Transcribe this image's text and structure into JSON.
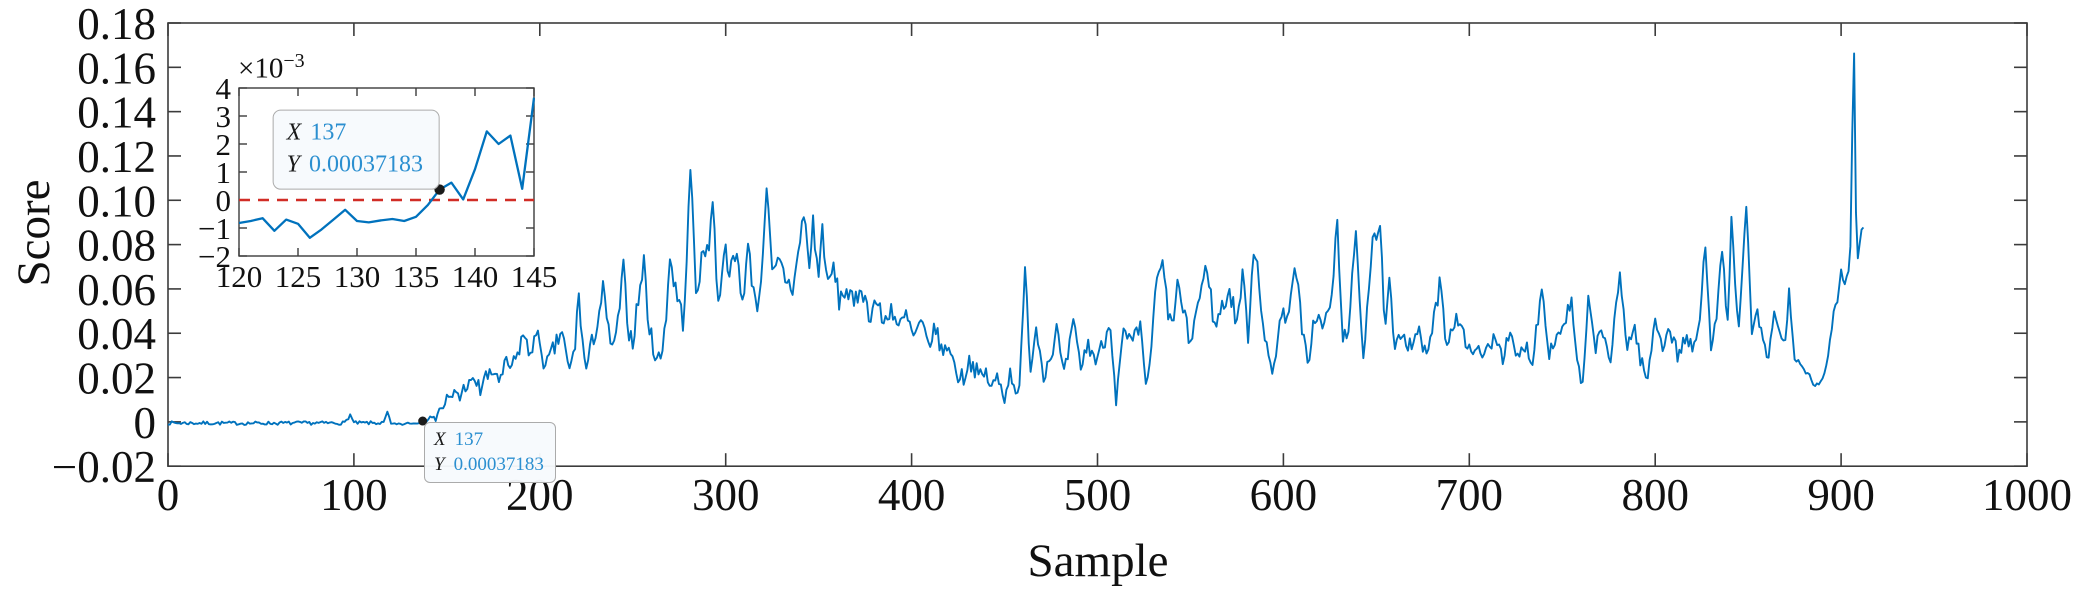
{
  "figure": {
    "background": "#ffffff"
  },
  "chart_data": {
    "type": "line",
    "title": "",
    "xlabel": "Sample",
    "ylabel": "Score",
    "grid": false,
    "legend": null,
    "xlim": [
      0,
      1000
    ],
    "ylim": [
      -0.02,
      0.18
    ],
    "xtick_values": [
      0,
      100,
      200,
      300,
      400,
      500,
      600,
      700,
      800,
      900,
      1000
    ],
    "xtick_labels": [
      "0",
      "100",
      "200",
      "300",
      "400",
      "500",
      "600",
      "700",
      "800",
      "900",
      "1000"
    ],
    "ytick_values": [
      -0.02,
      0,
      0.02,
      0.04,
      0.06,
      0.08,
      0.1,
      0.12,
      0.14,
      0.16,
      0.18
    ],
    "ytick_labels": [
      "−0.02",
      "0",
      "0.02",
      "0.04",
      "0.06",
      "0.08",
      "0.10",
      "0.12",
      "0.14",
      "0.16",
      "0.18"
    ],
    "colors": {
      "line": "#0072BD",
      "threshold": "#d12d26",
      "axis": "#3c3c3c",
      "tick_label": "#111111",
      "datatip_value": "#2b8fd0",
      "marker": "#1b1b1b"
    },
    "datatip": {
      "x_label": "X",
      "x_value": "137",
      "y_label": "Y",
      "y_value": "0.00037183"
    },
    "marker_point": {
      "x": 137,
      "y": 0.00037183
    },
    "main_series": {
      "x_start": 0,
      "x_end": 912,
      "seed": 7,
      "baseline_keypoints": [
        [
          0,
          -0.0005
        ],
        [
          40,
          -0.0006
        ],
        [
          95,
          -0.0005
        ],
        [
          98,
          0.0032
        ],
        [
          100,
          -0.0005
        ],
        [
          116,
          -0.0005
        ],
        [
          118,
          0.0045
        ],
        [
          120,
          -0.0008
        ],
        [
          128,
          -0.0006
        ],
        [
          136,
          -0.0002
        ],
        [
          137,
          0.00037183
        ],
        [
          139,
          0.002
        ],
        [
          141,
          0.0018
        ],
        [
          143,
          0.005
        ],
        [
          145,
          0.007
        ],
        [
          147,
          0.005
        ],
        [
          150,
          0.0105
        ],
        [
          152,
          0.0095
        ],
        [
          155,
          0.014
        ],
        [
          157,
          0.011
        ],
        [
          160,
          0.0167
        ],
        [
          163,
          0.0165
        ],
        [
          165,
          0.019
        ],
        [
          168,
          0.014
        ],
        [
          170,
          0.0203
        ],
        [
          173,
          0.02
        ],
        [
          176,
          0.023
        ],
        [
          179,
          0.018
        ],
        [
          182,
          0.0265
        ],
        [
          185,
          0.024
        ],
        [
          188,
          0.03
        ],
        [
          191,
          0.04
        ],
        [
          194,
          0.031
        ],
        [
          197,
          0.037
        ],
        [
          200,
          0.037
        ],
        [
          203,
          0.0235
        ],
        [
          206,
          0.03
        ],
        [
          209,
          0.035
        ],
        [
          212,
          0.0415
        ],
        [
          214,
          0.03
        ],
        [
          216,
          0.0221
        ],
        [
          219,
          0.035
        ],
        [
          221,
          0.0582
        ],
        [
          223,
          0.035
        ],
        [
          225,
          0.0235
        ],
        [
          228,
          0.035
        ],
        [
          231,
          0.045
        ],
        [
          234,
          0.0596
        ],
        [
          237,
          0.04
        ],
        [
          240,
          0.0325
        ],
        [
          242,
          0.045
        ],
        [
          245,
          0.0686
        ],
        [
          248,
          0.04
        ],
        [
          250,
          0.037
        ],
        [
          253,
          0.055
        ],
        [
          256,
          0.0723
        ],
        [
          259,
          0.04
        ],
        [
          262,
          0.032
        ],
        [
          265,
          0.0266
        ],
        [
          268,
          0.05
        ],
        [
          270,
          0.074
        ],
        [
          273,
          0.06
        ],
        [
          277,
          0.046
        ],
        [
          279,
          0.07
        ],
        [
          281,
          0.116
        ],
        [
          284,
          0.06
        ],
        [
          288,
          0.075
        ],
        [
          291,
          0.082
        ],
        [
          293,
          0.1
        ],
        [
          296,
          0.052
        ],
        [
          299,
          0.0785
        ],
        [
          303,
          0.068
        ],
        [
          306,
          0.075
        ],
        [
          309,
          0.055
        ],
        [
          312,
          0.078
        ],
        [
          315,
          0.06
        ],
        [
          318,
          0.052
        ],
        [
          322,
          0.107
        ],
        [
          325,
          0.065
        ],
        [
          329,
          0.072
        ],
        [
          332,
          0.065
        ],
        [
          336,
          0.06
        ],
        [
          339,
          0.075
        ],
        [
          342,
          0.095
        ],
        [
          345,
          0.07
        ],
        [
          347,
          0.09
        ],
        [
          350,
          0.065
        ],
        [
          352,
          0.088
        ],
        [
          355,
          0.06
        ],
        [
          358,
          0.07
        ],
        [
          361,
          0.055
        ],
        [
          365,
          0.06
        ],
        [
          369,
          0.052
        ],
        [
          373,
          0.062
        ],
        [
          377,
          0.048
        ],
        [
          381,
          0.055
        ],
        [
          385,
          0.044
        ],
        [
          389,
          0.052
        ],
        [
          393,
          0.042
        ],
        [
          397,
          0.048
        ],
        [
          401,
          0.038
        ],
        [
          405,
          0.044
        ],
        [
          409,
          0.035
        ],
        [
          413,
          0.042
        ],
        [
          417,
          0.03
        ],
        [
          420,
          0.036
        ],
        [
          422,
          0.028
        ],
        [
          425,
          0.021
        ],
        [
          428,
          0.02
        ],
        [
          431,
          0.028
        ],
        [
          434,
          0.024
        ],
        [
          437,
          0.02
        ],
        [
          440,
          0.022
        ],
        [
          443,
          0.015
        ],
        [
          446,
          0.02
        ],
        [
          450,
          0.012
        ],
        [
          453,
          0.022
        ],
        [
          456,
          0.016
        ],
        [
          458,
          0.013
        ],
        [
          461,
          0.068
        ],
        [
          464,
          0.025
        ],
        [
          467,
          0.043
        ],
        [
          471,
          0.022
        ],
        [
          475,
          0.03
        ],
        [
          478,
          0.042
        ],
        [
          482,
          0.02
        ],
        [
          487,
          0.044
        ],
        [
          491,
          0.025
        ],
        [
          495,
          0.035
        ],
        [
          499,
          0.028
        ],
        [
          503,
          0.035
        ],
        [
          507,
          0.045
        ],
        [
          510,
          0.01
        ],
        [
          514,
          0.04
        ],
        [
          518,
          0.035
        ],
        [
          523,
          0.042
        ],
        [
          526,
          0.018
        ],
        [
          529,
          0.03
        ],
        [
          531,
          0.06
        ],
        [
          535,
          0.071
        ],
        [
          538,
          0.05
        ],
        [
          540,
          0.042
        ],
        [
          543,
          0.062
        ],
        [
          546,
          0.05
        ],
        [
          550,
          0.035
        ],
        [
          553,
          0.05
        ],
        [
          556,
          0.06
        ],
        [
          559,
          0.071
        ],
        [
          563,
          0.042
        ],
        [
          566,
          0.05
        ],
        [
          571,
          0.059
        ],
        [
          575,
          0.045
        ],
        [
          578,
          0.066
        ],
        [
          581,
          0.04
        ],
        [
          584,
          0.078
        ],
        [
          586,
          0.073
        ],
        [
          590,
          0.035
        ],
        [
          594,
          0.022
        ],
        [
          598,
          0.045
        ],
        [
          602,
          0.05
        ],
        [
          607,
          0.069
        ],
        [
          610,
          0.04
        ],
        [
          613,
          0.027
        ],
        [
          617,
          0.048
        ],
        [
          621,
          0.043
        ],
        [
          625,
          0.05
        ],
        [
          629,
          0.088
        ],
        [
          632,
          0.035
        ],
        [
          635,
          0.045
        ],
        [
          639,
          0.0815
        ],
        [
          643,
          0.03
        ],
        [
          648,
          0.085
        ],
        [
          652,
          0.084
        ],
        [
          655,
          0.04
        ],
        [
          657,
          0.063
        ],
        [
          660,
          0.03
        ],
        [
          664,
          0.042
        ],
        [
          668,
          0.035
        ],
        [
          672,
          0.042
        ],
        [
          676,
          0.03
        ],
        [
          680,
          0.04
        ],
        [
          684,
          0.062
        ],
        [
          688,
          0.035
        ],
        [
          691,
          0.045
        ],
        [
          695,
          0.047
        ],
        [
          699,
          0.03
        ],
        [
          703,
          0.036
        ],
        [
          706,
          0.028
        ],
        [
          710,
          0.033
        ],
        [
          714,
          0.04
        ],
        [
          718,
          0.03
        ],
        [
          722,
          0.038
        ],
        [
          726,
          0.028
        ],
        [
          730,
          0.035
        ],
        [
          734,
          0.028
        ],
        [
          739,
          0.061
        ],
        [
          743,
          0.032
        ],
        [
          747,
          0.038
        ],
        [
          751,
          0.045
        ],
        [
          755,
          0.054
        ],
        [
          758,
          0.025
        ],
        [
          761,
          0.016
        ],
        [
          764,
          0.053
        ],
        [
          768,
          0.035
        ],
        [
          772,
          0.04
        ],
        [
          776,
          0.028
        ],
        [
          781,
          0.0655
        ],
        [
          785,
          0.035
        ],
        [
          789,
          0.042
        ],
        [
          793,
          0.025
        ],
        [
          796,
          0.019
        ],
        [
          800,
          0.047
        ],
        [
          804,
          0.035
        ],
        [
          808,
          0.042
        ],
        [
          812,
          0.03
        ],
        [
          816,
          0.038
        ],
        [
          820,
          0.032
        ],
        [
          824,
          0.045
        ],
        [
          827,
          0.0815
        ],
        [
          830,
          0.035
        ],
        [
          833,
          0.05
        ],
        [
          836,
          0.076
        ],
        [
          839,
          0.045
        ],
        [
          841,
          0.09
        ],
        [
          845,
          0.04
        ],
        [
          849,
          0.0975
        ],
        [
          852,
          0.04
        ],
        [
          855,
          0.05
        ],
        [
          858,
          0.035
        ],
        [
          861,
          0.028
        ],
        [
          864,
          0.05
        ],
        [
          867,
          0.04
        ],
        [
          870,
          0.035
        ],
        [
          872,
          0.06
        ],
        [
          875,
          0.028
        ],
        [
          878,
          0.025
        ],
        [
          881,
          0.022
        ],
        [
          884,
          0.019
        ],
        [
          887,
          0.016
        ],
        [
          890,
          0.018
        ],
        [
          893,
          0.03
        ],
        [
          896,
          0.05
        ],
        [
          898,
          0.055
        ],
        [
          900,
          0.0686
        ],
        [
          902,
          0.062
        ],
        [
          904,
          0.069
        ],
        [
          905,
          0.08
        ],
        [
          906,
          0.13
        ],
        [
          907,
          0.1657
        ],
        [
          908,
          0.095
        ],
        [
          909,
          0.074
        ],
        [
          910,
          0.08
        ],
        [
          911,
          0.0876
        ],
        [
          912,
          0.088
        ]
      ],
      "noise_keypoints": [
        [
          0,
          0.0008
        ],
        [
          115,
          0.0008
        ],
        [
          118,
          0.0003
        ],
        [
          125,
          0.0008
        ],
        [
          135,
          0.0006
        ],
        [
          140,
          0.0015
        ],
        [
          150,
          0.003
        ],
        [
          170,
          0.004
        ],
        [
          200,
          0.0045
        ],
        [
          250,
          0.005
        ],
        [
          300,
          0.0055
        ],
        [
          360,
          0.005
        ],
        [
          420,
          0.004
        ],
        [
          520,
          0.004
        ],
        [
          535,
          0.0045
        ],
        [
          660,
          0.005
        ],
        [
          700,
          0.004
        ],
        [
          820,
          0.004
        ],
        [
          878,
          0.002
        ],
        [
          900,
          0.0015
        ],
        [
          912,
          0.001
        ]
      ]
    },
    "inset": {
      "exponent_prefix": "×10",
      "exponent_power": "−3",
      "xlim": [
        120,
        145
      ],
      "ylim": [
        -0.002,
        0.004
      ],
      "xtick_values": [
        120,
        125,
        130,
        135,
        140,
        145
      ],
      "xtick_labels": [
        "120",
        "125",
        "130",
        "135",
        "140",
        "145"
      ],
      "ytick_values": [
        -0.002,
        -0.001,
        0,
        0.001,
        0.002,
        0.003,
        0.004
      ],
      "ytick_labels": [
        "−2",
        "−1",
        "0",
        "1",
        "2",
        "3",
        "4"
      ],
      "threshold_y": 0,
      "points": [
        [
          120,
          -0.00082
        ],
        [
          121,
          -0.00075
        ],
        [
          122,
          -0.00065
        ],
        [
          123,
          -0.0011
        ],
        [
          124,
          -0.0007
        ],
        [
          125,
          -0.00085
        ],
        [
          126,
          -0.00135
        ],
        [
          127,
          -0.00105
        ],
        [
          128,
          -0.0007
        ],
        [
          129,
          -0.00035
        ],
        [
          130,
          -0.00075
        ],
        [
          131,
          -0.0008
        ],
        [
          132,
          -0.00073
        ],
        [
          133,
          -0.00068
        ],
        [
          134,
          -0.00075
        ],
        [
          135,
          -0.0006
        ],
        [
          136,
          -0.00018
        ],
        [
          137,
          0.00037183
        ],
        [
          138,
          0.00062
        ],
        [
          139,
          2e-05
        ],
        [
          140,
          0.0011
        ],
        [
          141,
          0.00245
        ],
        [
          142,
          0.002
        ],
        [
          143,
          0.0023
        ],
        [
          144,
          0.0004
        ],
        [
          145,
          0.00365
        ]
      ]
    }
  }
}
